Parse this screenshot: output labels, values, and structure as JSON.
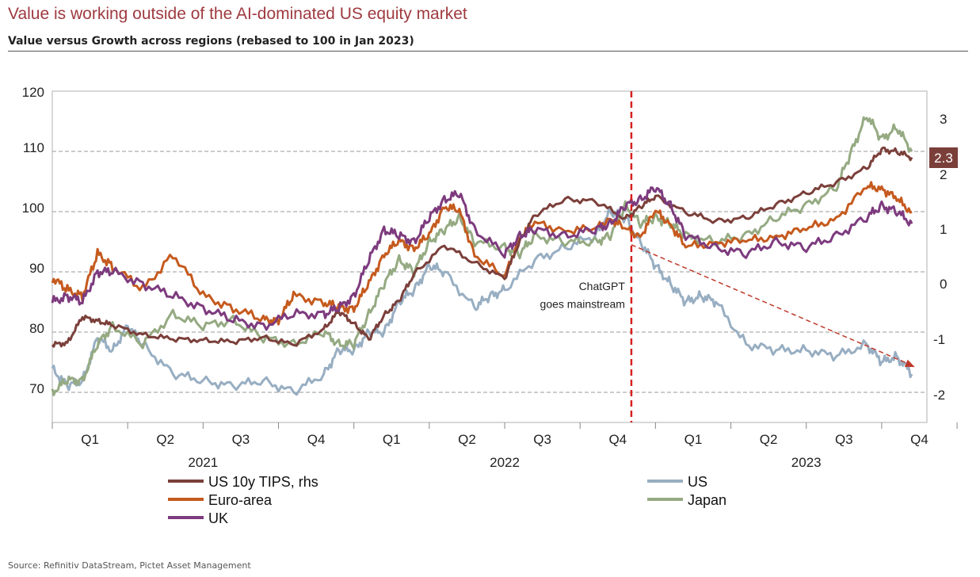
{
  "header": {
    "title": "Value is working outside of the AI-dominated US equity market",
    "subtitle": "Value versus Growth across regions (rebased to 100 in Jan 2023)"
  },
  "source": "Source: Refinitiv DataStream, Pictet Asset Management",
  "chart_data": {
    "type": "line",
    "title": "Value versus Growth across regions (rebased to 100 in Jan 2023)",
    "x_range": [
      2021.0,
      2023.9
    ],
    "ylim": [
      65,
      120
    ],
    "y_ticks": [
      "70",
      "80",
      "90",
      "100",
      "110",
      "120"
    ],
    "y2lim": [
      -2.5,
      3.5
    ],
    "y2_ticks": [
      "-2",
      "-1",
      "0",
      "1",
      "2",
      "3"
    ],
    "quarter_labels": [
      "Q1",
      "Q2",
      "Q3",
      "Q4",
      "Q1",
      "Q2",
      "Q3",
      "Q4",
      "Q1",
      "Q2",
      "Q3",
      "Q4"
    ],
    "year_labels": [
      "2021",
      "2022",
      "2023"
    ],
    "last_value_label": "2.3",
    "annotation": {
      "line1": "ChatGPT",
      "line2": "goes mainstream",
      "x": 2022.92
    },
    "trend_arrow": {
      "from": [
        2022.92,
        94.5
      ],
      "to": [
        2023.86,
        74.2
      ]
    },
    "series": [
      {
        "name": "US 10y TIPS, rhs",
        "axis": "right",
        "color": "#7b3f3a",
        "x": [
          2021.0,
          2021.05,
          2021.1,
          2021.15,
          2021.2,
          2021.3,
          2021.4,
          2021.5,
          2021.6,
          2021.7,
          2021.8,
          2021.9,
          2021.95,
          2022.0,
          2022.05,
          2022.1,
          2022.15,
          2022.2,
          2022.3,
          2022.4,
          2022.5,
          2022.55,
          2022.6,
          2022.7,
          2022.8,
          2022.9,
          2022.95,
          2023.0,
          2023.1,
          2023.2,
          2023.3,
          2023.4,
          2023.5,
          2023.6,
          2023.7,
          2023.75,
          2023.8,
          2023.85
        ],
        "values": [
          -1.1,
          -1.05,
          -0.6,
          -0.65,
          -0.75,
          -0.9,
          -1.0,
          -1.0,
          -1.05,
          -0.95,
          -1.1,
          -0.8,
          -0.5,
          -0.7,
          -1.0,
          -0.55,
          -0.3,
          0.2,
          0.7,
          0.4,
          0.1,
          0.8,
          1.25,
          1.55,
          1.5,
          1.2,
          1.4,
          1.6,
          1.3,
          1.15,
          1.2,
          1.45,
          1.65,
          1.85,
          2.1,
          2.45,
          2.4,
          2.3
        ]
      },
      {
        "name": "US",
        "axis": "left",
        "color": "#98aec2",
        "x": [
          2021.0,
          2021.05,
          2021.1,
          2021.15,
          2021.2,
          2021.25,
          2021.3,
          2021.4,
          2021.5,
          2021.6,
          2021.7,
          2021.8,
          2021.9,
          2021.95,
          2022.0,
          2022.05,
          2022.1,
          2022.15,
          2022.2,
          2022.25,
          2022.3,
          2022.4,
          2022.45,
          2022.5,
          2022.6,
          2022.7,
          2022.8,
          2022.85,
          2022.9,
          2022.95,
          2023.0,
          2023.05,
          2023.1,
          2023.15,
          2023.2,
          2023.3,
          2023.4,
          2023.5,
          2023.6,
          2023.7,
          2023.75,
          2023.8,
          2023.85
        ],
        "values": [
          74,
          71,
          72,
          79,
          77,
          81,
          78,
          73,
          72,
          71,
          72,
          70,
          73,
          77,
          77,
          80,
          80,
          85,
          87,
          91,
          90,
          84,
          86,
          87,
          92,
          94,
          96,
          100,
          99,
          95,
          91,
          88,
          85,
          86,
          85,
          78,
          77,
          77,
          76,
          78,
          75,
          76,
          73
        ]
      },
      {
        "name": "Euro-area",
        "axis": "left",
        "color": "#c55a1e",
        "x": [
          2021.0,
          2021.05,
          2021.1,
          2021.15,
          2021.2,
          2021.3,
          2021.4,
          2021.5,
          2021.6,
          2021.7,
          2021.75,
          2021.8,
          2021.9,
          2021.95,
          2022.0,
          2022.05,
          2022.1,
          2022.15,
          2022.2,
          2022.25,
          2022.3,
          2022.35,
          2022.4,
          2022.5,
          2022.55,
          2022.6,
          2022.7,
          2022.8,
          2022.85,
          2022.9,
          2022.95,
          2023.0,
          2023.05,
          2023.1,
          2023.2,
          2023.3,
          2023.4,
          2023.5,
          2023.6,
          2023.7,
          2023.75,
          2023.8,
          2023.85
        ],
        "values": [
          89,
          87,
          86,
          93,
          91,
          87,
          93,
          86,
          84,
          82,
          82,
          86,
          85,
          84,
          84,
          88,
          93,
          95,
          94,
          96,
          101,
          100,
          93,
          89,
          96,
          98,
          97,
          97,
          99,
          97,
          96,
          100,
          98,
          94,
          95,
          95,
          96,
          97,
          99,
          104,
          104,
          102,
          100
        ]
      },
      {
        "name": "Japan",
        "axis": "left",
        "color": "#95aa82",
        "x": [
          2021.0,
          2021.05,
          2021.1,
          2021.15,
          2021.2,
          2021.3,
          2021.4,
          2021.5,
          2021.6,
          2021.7,
          2021.8,
          2021.9,
          2021.95,
          2022.0,
          2022.05,
          2022.1,
          2022.15,
          2022.2,
          2022.25,
          2022.3,
          2022.35,
          2022.4,
          2022.5,
          2022.55,
          2022.6,
          2022.7,
          2022.8,
          2022.85,
          2022.9,
          2022.95,
          2023.0,
          2023.05,
          2023.1,
          2023.2,
          2023.3,
          2023.4,
          2023.5,
          2023.6,
          2023.65,
          2023.7,
          2023.75,
          2023.8,
          2023.85
        ],
        "values": [
          70,
          72,
          72,
          78,
          81,
          78,
          83,
          81,
          82,
          79,
          78,
          80,
          78,
          78,
          83,
          88,
          92,
          90,
          95,
          97,
          99,
          95,
          94,
          93,
          96,
          95,
          95,
          96,
          101,
          98,
          99,
          98,
          96,
          95,
          96,
          99,
          101,
          104,
          110,
          116,
          112,
          114,
          110
        ]
      },
      {
        "name": "UK",
        "axis": "left",
        "color": "#7d3b7e",
        "x": [
          2021.0,
          2021.05,
          2021.1,
          2021.15,
          2021.2,
          2021.3,
          2021.4,
          2021.5,
          2021.6,
          2021.7,
          2021.8,
          2021.9,
          2021.95,
          2022.0,
          2022.05,
          2022.1,
          2022.15,
          2022.2,
          2022.25,
          2022.3,
          2022.35,
          2022.4,
          2022.5,
          2022.55,
          2022.6,
          2022.7,
          2022.8,
          2022.85,
          2022.9,
          2022.95,
          2023.0,
          2023.05,
          2023.1,
          2023.2,
          2023.3,
          2023.4,
          2023.5,
          2023.6,
          2023.7,
          2023.75,
          2023.8,
          2023.85
        ],
        "values": [
          85,
          86,
          85,
          90,
          90,
          88,
          86,
          84,
          82,
          81,
          83,
          83,
          84,
          86,
          92,
          97,
          96,
          95,
          99,
          102,
          103,
          97,
          93,
          96,
          97,
          96,
          97,
          98,
          101,
          102,
          104,
          101,
          96,
          94,
          93,
          95,
          94,
          96,
          99,
          101,
          100,
          98
        ]
      }
    ]
  },
  "legend": [
    {
      "label": "US 10y TIPS, rhs",
      "color": "#7b3f3a"
    },
    {
      "label": "US",
      "color": "#98aec2"
    },
    {
      "label": "Euro-area",
      "color": "#c55a1e"
    },
    {
      "label": "Japan",
      "color": "#95aa82"
    },
    {
      "label": "UK",
      "color": "#7d3b7e"
    }
  ]
}
